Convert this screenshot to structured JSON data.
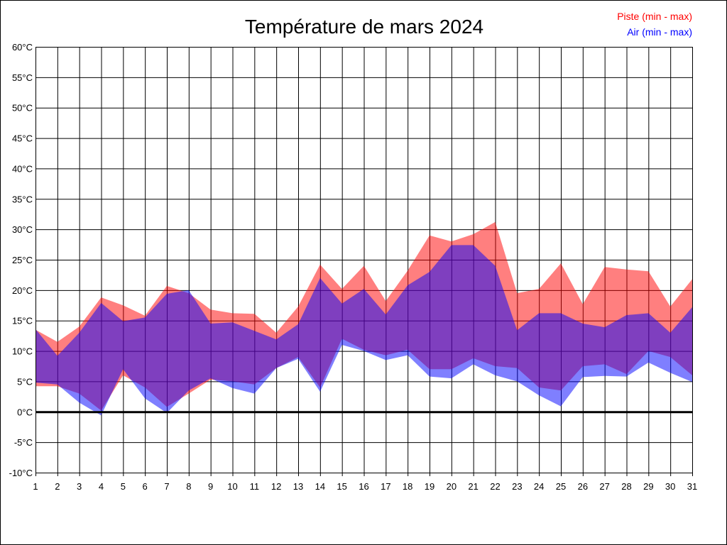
{
  "chart_data": {
    "type": "area",
    "title": "Température de mars 2024",
    "xlabel": "",
    "ylabel": "",
    "x": [
      1,
      2,
      3,
      4,
      5,
      6,
      7,
      8,
      9,
      10,
      11,
      12,
      13,
      14,
      15,
      16,
      17,
      18,
      19,
      20,
      21,
      22,
      23,
      24,
      25,
      26,
      27,
      28,
      29,
      30,
      31
    ],
    "xlim": [
      1,
      31
    ],
    "ylim": [
      -10,
      60
    ],
    "ytick_step": 5,
    "yunit": "°C",
    "grid": true,
    "legend_placement": "top-right",
    "series": [
      {
        "name": "Piste (min - max)",
        "color": "#ff0000",
        "max": [
          13.5,
          11.5,
          14,
          18.8,
          17.5,
          15.8,
          20.7,
          19.5,
          16.8,
          16.2,
          16.1,
          13,
          17.3,
          24.2,
          20.2,
          24,
          18.2,
          23.2,
          29,
          28,
          29.2,
          31.2,
          19.5,
          20.2,
          24.4,
          17.7,
          23.8,
          23.4,
          23.1,
          17.3,
          21.8
        ],
        "min": [
          4.2,
          4.2,
          3,
          0.2,
          6,
          4,
          0.8,
          3,
          5.3,
          5,
          4.5,
          7.2,
          9,
          4,
          12,
          10.2,
          9.3,
          10.2,
          7,
          7,
          8.8,
          7.5,
          7.2,
          4,
          3.5,
          7.5,
          7.8,
          6.2,
          10,
          9,
          6
        ]
      },
      {
        "name": "Air (min - max)",
        "color": "#0000ff",
        "max": [
          13.6,
          9.2,
          13,
          17.9,
          14.9,
          15.5,
          19.4,
          20,
          14.5,
          14.7,
          13.3,
          11.9,
          14.4,
          22,
          17.8,
          20.2,
          16,
          20.8,
          23,
          27.4,
          27.4,
          24,
          13.4,
          16.2,
          16.2,
          14.5,
          13.9,
          15.9,
          16.2,
          13,
          17.2
        ],
        "min": [
          4.8,
          4.5,
          1.5,
          -0.6,
          7,
          2.2,
          -0.2,
          3.5,
          5.5,
          3.9,
          3,
          7.2,
          8.7,
          3.3,
          11,
          10,
          8.5,
          9.3,
          5.8,
          5.5,
          7.8,
          6,
          5,
          2.7,
          0.9,
          5.7,
          5.9,
          5.8,
          8.1,
          6.4,
          4.9
        ]
      }
    ]
  }
}
